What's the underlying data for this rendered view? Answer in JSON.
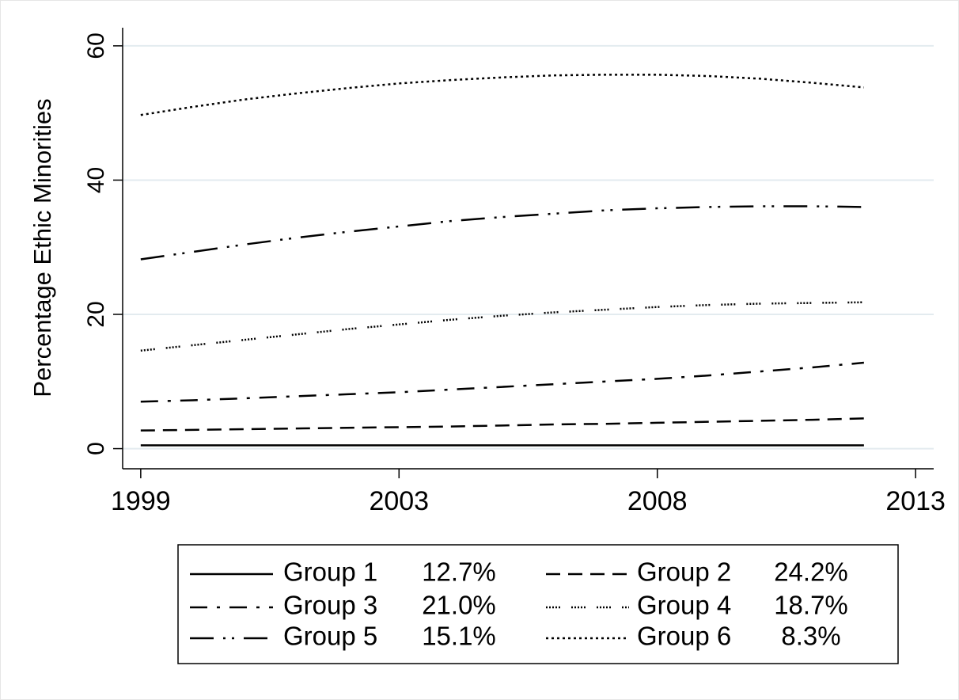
{
  "chart_data": {
    "type": "line",
    "y_label": "Percentage Ethic Minorities",
    "x": [
      0,
      1,
      2,
      3,
      4,
      5,
      6,
      7,
      8,
      9,
      10,
      11,
      12,
      13,
      14
    ],
    "xlim": [
      -0.35,
      15.35
    ],
    "xticks": [
      {
        "value": 0,
        "label": "1999"
      },
      {
        "value": 5,
        "label": "2003"
      },
      {
        "value": 10,
        "label": "2008"
      },
      {
        "value": 15,
        "label": "2013"
      }
    ],
    "ylim": [
      -3,
      62.7
    ],
    "yticks": [
      0,
      20,
      40,
      60
    ],
    "grid": true,
    "series": [
      {
        "name": "Group 1",
        "share": "12.7%",
        "color": "#000000",
        "line_style": "solid",
        "values": [
          0.5,
          0.5,
          0.5,
          0.5,
          0.5,
          0.5,
          0.5,
          0.5,
          0.5,
          0.5,
          0.5,
          0.5,
          0.5,
          0.5,
          0.5
        ]
      },
      {
        "name": "Group 2",
        "share": "24.2%",
        "color": "#000000",
        "line_style": "dash",
        "values": [
          2.7,
          2.8,
          2.9,
          3.0,
          3.1,
          3.2,
          3.3,
          3.45,
          3.6,
          3.7,
          3.85,
          4.0,
          4.15,
          4.3,
          4.5
        ]
      },
      {
        "name": "Group 3",
        "share": "21.0%",
        "color": "#000000",
        "line_style": "longdash-dot",
        "values": [
          7.0,
          7.2,
          7.5,
          7.8,
          8.1,
          8.4,
          8.8,
          9.2,
          9.6,
          10.0,
          10.4,
          10.9,
          11.5,
          12.1,
          12.8
        ]
      },
      {
        "name": "Group 4",
        "share": "18.7%",
        "color": "#000000",
        "line_style": "shortdot",
        "values": [
          14.6,
          15.4,
          16.2,
          17.0,
          17.8,
          18.5,
          19.2,
          19.8,
          20.3,
          20.7,
          21.1,
          21.4,
          21.6,
          21.7,
          21.8
        ]
      },
      {
        "name": "Group 5",
        "share": "15.1%",
        "color": "#000000",
        "line_style": "longdash-dot-dot",
        "values": [
          28.2,
          29.3,
          30.4,
          31.4,
          32.3,
          33.1,
          33.9,
          34.5,
          35.0,
          35.5,
          35.8,
          36.0,
          36.1,
          36.1,
          36.0
        ]
      },
      {
        "name": "Group 6",
        "share": "8.3%",
        "color": "#000000",
        "line_style": "dot",
        "values": [
          49.7,
          50.9,
          52.0,
          52.9,
          53.7,
          54.4,
          54.9,
          55.3,
          55.6,
          55.7,
          55.7,
          55.5,
          55.1,
          54.5,
          53.8
        ]
      }
    ]
  }
}
